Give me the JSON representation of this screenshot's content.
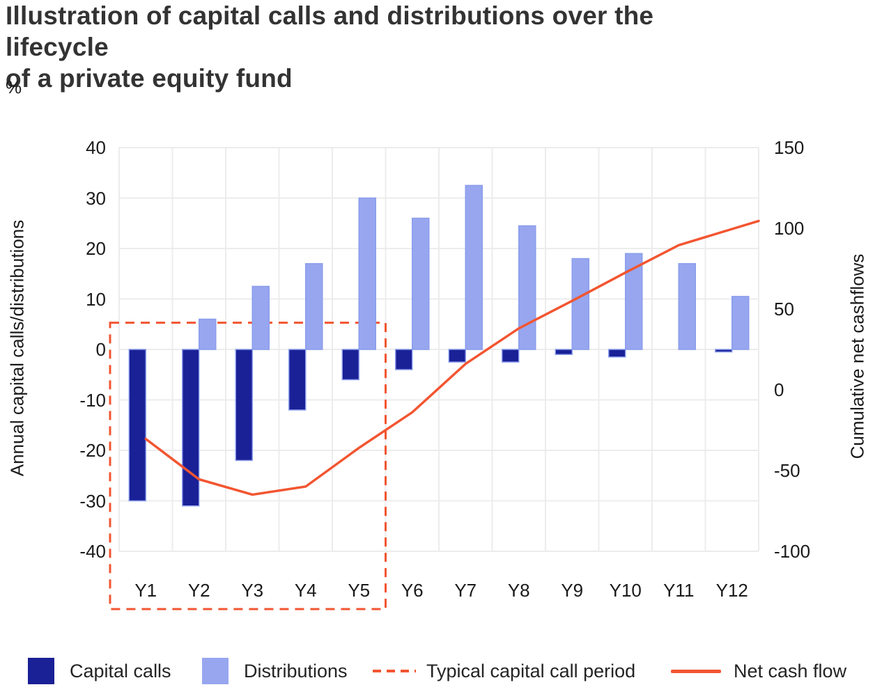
{
  "title_lines": [
    "Illustration of capital calls and distributions over the lifecycle",
    "of a private equity fund"
  ],
  "left_axis": {
    "unit": "%",
    "title": "Annual capital calls/distributions",
    "ticks": [
      40,
      30,
      20,
      10,
      0,
      -10,
      -20,
      -30,
      -40
    ],
    "range": [
      -40,
      40
    ]
  },
  "right_axis": {
    "title": "Cumulative net cashflows",
    "ticks": [
      150,
      100,
      50,
      0,
      -50,
      -100
    ],
    "range": [
      -100,
      150
    ]
  },
  "chart_data": {
    "type": "bar",
    "subtype": "grouped bars with overlaid cumulative line",
    "categories": [
      "Y1",
      "Y2",
      "Y3",
      "Y4",
      "Y5",
      "Y6",
      "Y7",
      "Y8",
      "Y9",
      "Y10",
      "Y11",
      "Y12"
    ],
    "series": [
      {
        "name": "Capital calls",
        "type": "bar",
        "axis": "left",
        "color": "#1A2096",
        "values": [
          -30,
          -31,
          -22,
          -12,
          -6,
          -4,
          -2.5,
          -2.5,
          -1,
          -1.5,
          0,
          -0.5
        ]
      },
      {
        "name": "Distributions",
        "type": "bar",
        "axis": "left",
        "color": "#97A6EF",
        "values": [
          0,
          6,
          12.5,
          17,
          30,
          26,
          32.5,
          24.5,
          18,
          19,
          17,
          10.5
        ]
      },
      {
        "name": "Net cash flow",
        "type": "line",
        "axis": "right",
        "color": "#F25531",
        "values": [
          -30,
          -55,
          -64.5,
          -59.5,
          -35.5,
          -13.5,
          16.5,
          38.5,
          55.5,
          73,
          90,
          100
        ],
        "extends_to_right_edge": true
      }
    ],
    "annotation": {
      "label": "Typical capital call period",
      "style": "dashed-rectangle",
      "color": "#F25531",
      "covers_categories": [
        "Y1",
        "Y2",
        "Y3",
        "Y4",
        "Y5"
      ],
      "top_value_left_axis": 5.3
    },
    "grid": "on",
    "gridline_color": "#ECECEC",
    "legend_position": "bottom"
  },
  "legend": {
    "items": [
      {
        "label": "Capital calls",
        "swatch": "square",
        "color": "#1A2096"
      },
      {
        "label": "Distributions",
        "swatch": "square",
        "color": "#97A6EF"
      },
      {
        "label": "Typical capital call period",
        "swatch": "dashed-line",
        "color": "#F25531"
      },
      {
        "label": "Net cash flow",
        "swatch": "solid-line",
        "color": "#F25531"
      }
    ]
  }
}
